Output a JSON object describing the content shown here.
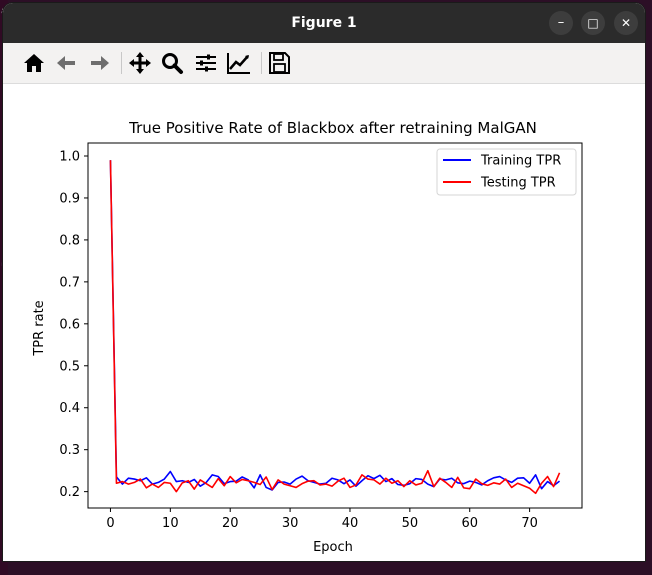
{
  "window": {
    "title": "Figure 1"
  },
  "window_controls": {
    "minimize": "–",
    "maximize": "□",
    "close": "✕"
  },
  "toolbar": {
    "icons": [
      "home-icon",
      "back-arrow-icon",
      "forward-arrow-icon",
      "pan-icon",
      "zoom-icon",
      "configure-subplots-icon",
      "edit-axis-icon",
      "save-icon"
    ]
  },
  "chart_data": {
    "type": "line",
    "title": "True Positive Rate of Blackbox after retraining MalGAN",
    "xlabel": "Epoch",
    "ylabel": "TPR rate",
    "xlim": [
      -3.75,
      78.75
    ],
    "ylim": [
      0.161,
      1.031
    ],
    "xticks": [
      0,
      10,
      20,
      30,
      40,
      50,
      60,
      70
    ],
    "yticks": [
      0.2,
      0.3,
      0.4,
      0.5,
      0.6,
      0.7,
      0.8,
      0.9,
      1.0
    ],
    "ytick_labels": [
      "0.2",
      "0.3",
      "0.4",
      "0.5",
      "0.6",
      "0.7",
      "0.8",
      "0.9",
      "1.0"
    ],
    "grid": false,
    "legend": "upper right",
    "series": [
      {
        "name": "Training TPR",
        "color": "#0000ff",
        "values": [
          0.99,
          0.235,
          0.218,
          0.232,
          0.23,
          0.226,
          0.233,
          0.218,
          0.222,
          0.23,
          0.248,
          0.224,
          0.226,
          0.222,
          0.229,
          0.213,
          0.222,
          0.24,
          0.236,
          0.219,
          0.224,
          0.225,
          0.235,
          0.228,
          0.209,
          0.24,
          0.21,
          0.204,
          0.222,
          0.223,
          0.218,
          0.23,
          0.237,
          0.226,
          0.222,
          0.218,
          0.22,
          0.232,
          0.228,
          0.219,
          0.228,
          0.213,
          0.226,
          0.238,
          0.231,
          0.239,
          0.224,
          0.231,
          0.217,
          0.215,
          0.219,
          0.231,
          0.229,
          0.218,
          0.212,
          0.23,
          0.228,
          0.232,
          0.221,
          0.219,
          0.225,
          0.222,
          0.216,
          0.226,
          0.233,
          0.236,
          0.228,
          0.222,
          0.232,
          0.233,
          0.22,
          0.24,
          0.207,
          0.224,
          0.214,
          0.225
        ]
      },
      {
        "name": "Testing TPR",
        "color": "#ff0000",
        "values": [
          0.99,
          0.22,
          0.224,
          0.218,
          0.222,
          0.23,
          0.209,
          0.218,
          0.21,
          0.222,
          0.22,
          0.2,
          0.221,
          0.226,
          0.206,
          0.228,
          0.219,
          0.21,
          0.231,
          0.214,
          0.236,
          0.221,
          0.229,
          0.226,
          0.222,
          0.217,
          0.235,
          0.205,
          0.228,
          0.218,
          0.214,
          0.21,
          0.219,
          0.225,
          0.226,
          0.216,
          0.218,
          0.213,
          0.225,
          0.232,
          0.21,
          0.216,
          0.24,
          0.23,
          0.228,
          0.218,
          0.232,
          0.22,
          0.226,
          0.212,
          0.226,
          0.216,
          0.22,
          0.25,
          0.212,
          0.232,
          0.222,
          0.21,
          0.234,
          0.209,
          0.207,
          0.23,
          0.219,
          0.215,
          0.221,
          0.218,
          0.23,
          0.21,
          0.22,
          0.214,
          0.208,
          0.196,
          0.22,
          0.236,
          0.212,
          0.245
        ]
      }
    ]
  }
}
